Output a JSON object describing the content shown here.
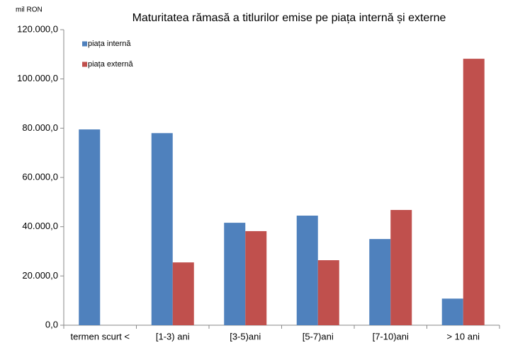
{
  "chart_data": {
    "type": "bar",
    "title": "Maturitatea rămasă a titlurilor emise pe piața internă și externe",
    "y_label": "mil RON",
    "categories": [
      "termen scurt <",
      "[1-3) ani",
      "[3-5)ani",
      "[5-7)ani",
      "[7-10)ani",
      "> 10 ani"
    ],
    "series": [
      {
        "name": "piața internă",
        "color": "#4f81bd",
        "values": [
          79500,
          78000,
          41600,
          44500,
          35000,
          10800
        ]
      },
      {
        "name": "piața externă",
        "color": "#c0504d",
        "values": [
          null,
          25500,
          38200,
          26400,
          46800,
          108200
        ]
      }
    ],
    "ylim": [
      0,
      120000
    ],
    "yticks": [
      {
        "value": 0,
        "label": "0,0"
      },
      {
        "value": 20000,
        "label": "20.000,0"
      },
      {
        "value": 40000,
        "label": "40.000,0"
      },
      {
        "value": 60000,
        "label": "60.000,0"
      },
      {
        "value": 80000,
        "label": "80.000,0"
      },
      {
        "value": 100000,
        "label": "100.000,0"
      },
      {
        "value": 120000,
        "label": "120.000,0"
      }
    ],
    "legend_position": "upper left",
    "grid": false
  }
}
